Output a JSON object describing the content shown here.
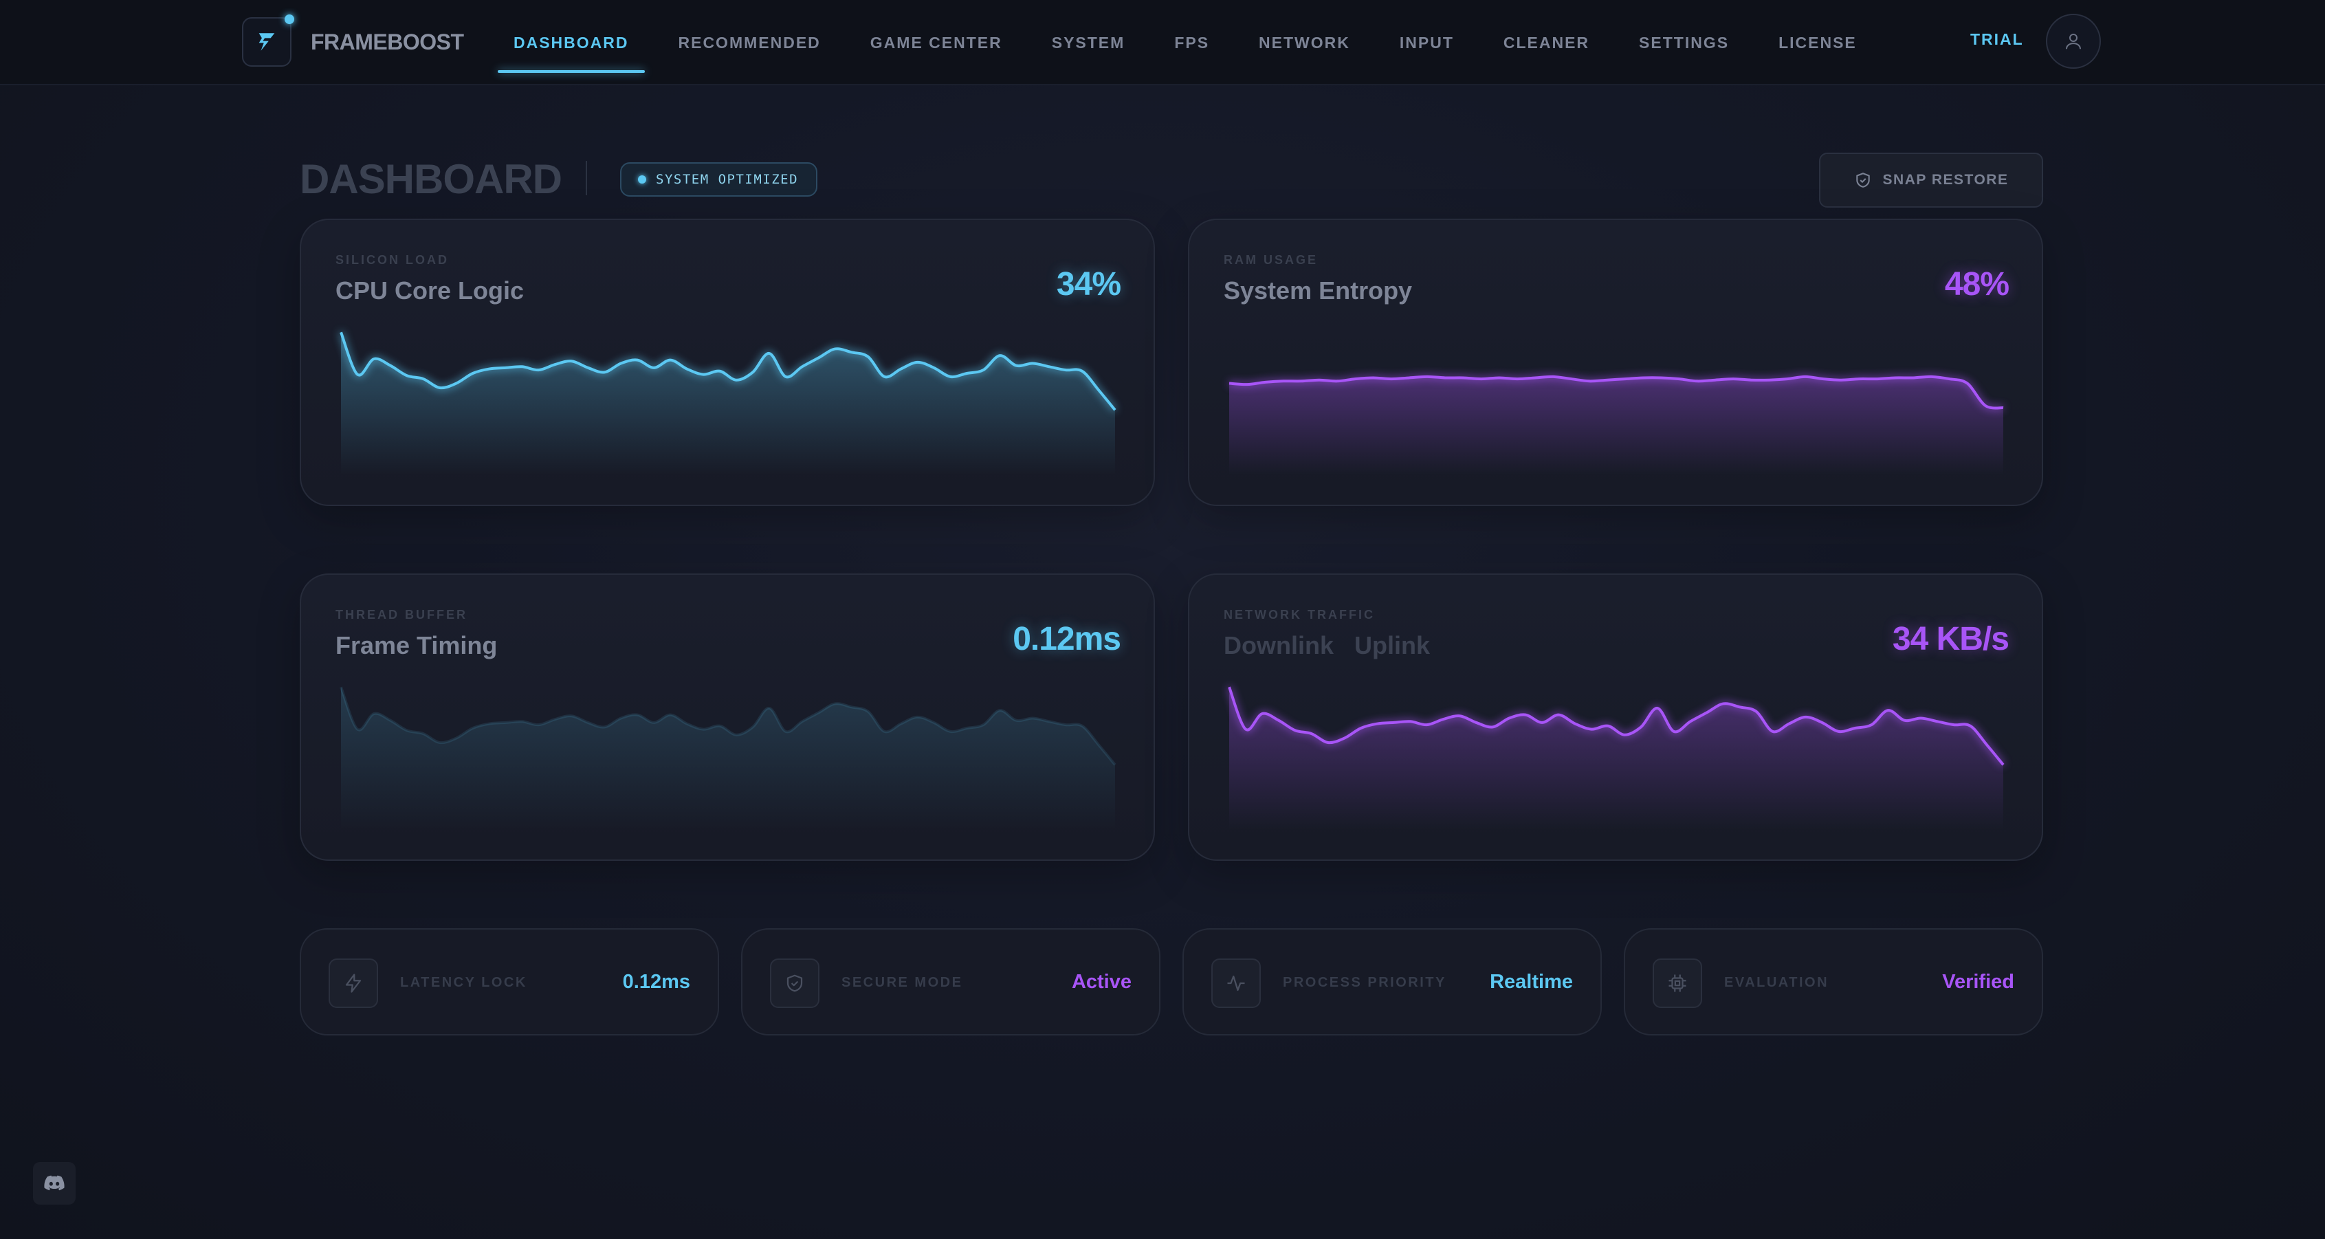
{
  "app": {
    "name": "FRAMEBOOST"
  },
  "nav": {
    "items": [
      {
        "label": "DASHBOARD",
        "active": true
      },
      {
        "label": "RECOMMENDED"
      },
      {
        "label": "GAME CENTER"
      },
      {
        "label": "SYSTEM"
      },
      {
        "label": "FPS"
      },
      {
        "label": "NETWORK"
      },
      {
        "label": "INPUT"
      },
      {
        "label": "CLEANER"
      },
      {
        "label": "SETTINGS"
      },
      {
        "label": "LICENSE"
      }
    ],
    "trial_label": "TRIAL",
    "user_icon": "user-icon"
  },
  "header": {
    "title": "DASHBOARD",
    "status_badge": "SYSTEM OPTIMIZED",
    "snap_restore_label": "SNAP RESTORE",
    "snap_restore_icon": "shield-icon"
  },
  "colors": {
    "accent_cyan": "#5cc8f2",
    "accent_purple": "#a855f7",
    "background": "#141826"
  },
  "cards": {
    "cpu": {
      "kicker": "SILICON LOAD",
      "title": "CPU Core Logic",
      "value": "34%",
      "color": "#5cc8f2"
    },
    "ram": {
      "kicker": "RAM USAGE",
      "title": "System Entropy",
      "value": "48%",
      "color": "#a855f7"
    },
    "frame": {
      "kicker": "THREAD BUFFER",
      "title": "Frame Timing",
      "value": "0.12ms",
      "color": "#5cc8f2"
    },
    "network": {
      "kicker": "NETWORK TRAFFIC",
      "title_a": "Downlink",
      "title_b": "Uplink",
      "value": "34 KB/s",
      "color": "#a855f7"
    }
  },
  "chart_data": [
    {
      "type": "area",
      "series": [
        {
          "values": [
            2,
            40,
            26,
            32,
            41,
            44,
            52,
            48,
            39,
            35,
            34,
            33,
            36,
            31,
            28,
            34,
            38,
            30,
            27,
            34,
            27,
            35,
            40,
            37,
            45,
            38,
            21,
            42,
            33,
            25,
            17,
            20,
            24,
            42,
            35,
            29,
            34,
            42,
            39,
            36,
            23,
            32,
            30,
            33,
            36,
            37,
            54,
            72
          ]
        }
      ],
      "ylim": [
        0,
        130
      ]
    },
    {
      "type": "area",
      "series": [
        {
          "values": [
            48,
            49,
            47,
            46,
            46,
            45,
            46,
            44,
            43,
            44,
            43,
            42,
            43,
            43,
            44,
            43,
            44,
            43,
            42,
            44,
            46,
            45,
            44,
            43,
            43,
            44,
            46,
            45,
            44,
            45,
            45,
            44,
            42,
            44,
            45,
            44,
            44,
            43,
            43,
            42,
            44,
            48,
            68,
            70
          ]
        }
      ],
      "ylim": [
        0,
        130
      ]
    },
    {
      "type": "area",
      "series": [
        {
          "values": [
            2,
            40,
            26,
            32,
            41,
            44,
            52,
            48,
            39,
            35,
            34,
            33,
            36,
            31,
            28,
            34,
            38,
            30,
            27,
            34,
            27,
            35,
            40,
            37,
            45,
            38,
            21,
            42,
            33,
            25,
            17,
            20,
            24,
            42,
            35,
            29,
            34,
            42,
            39,
            36,
            23,
            32,
            30,
            33,
            36,
            37,
            54,
            72
          ]
        }
      ],
      "ylim": [
        0,
        130
      ]
    },
    {
      "type": "area",
      "series": [
        {
          "values": [
            2,
            40,
            26,
            32,
            41,
            44,
            52,
            48,
            39,
            35,
            34,
            33,
            36,
            31,
            28,
            34,
            38,
            30,
            27,
            34,
            27,
            35,
            40,
            37,
            45,
            38,
            21,
            42,
            33,
            25,
            17,
            20,
            24,
            42,
            35,
            29,
            34,
            42,
            39,
            36,
            23,
            32,
            30,
            33,
            36,
            37,
            54,
            72
          ]
        }
      ],
      "ylim": [
        0,
        130
      ]
    }
  ],
  "status_cards": [
    {
      "label": "LATENCY LOCK",
      "value": "0.12ms",
      "icon": "bolt-icon",
      "color": "#5cc8f2"
    },
    {
      "label": "SECURE MODE",
      "value": "Active",
      "icon": "shield-icon",
      "color": "#a855f7"
    },
    {
      "label": "PROCESS PRIORITY",
      "value": "Realtime",
      "icon": "activity-icon",
      "color": "#5cc8f2"
    },
    {
      "label": "EVALUATION",
      "value": "Verified",
      "icon": "chip-icon",
      "color": "#a855f7"
    }
  ],
  "footer": {
    "discord_icon": "discord-icon"
  }
}
